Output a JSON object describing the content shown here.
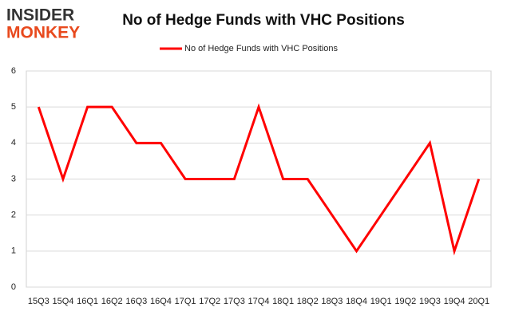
{
  "logo": {
    "line1": "INSIDER",
    "line2": "MONKEY"
  },
  "chart_data": {
    "type": "line",
    "title": "No of Hedge Funds with VHC Positions",
    "categories": [
      "15Q3",
      "15Q4",
      "16Q1",
      "16Q2",
      "16Q3",
      "16Q4",
      "17Q1",
      "17Q2",
      "17Q3",
      "17Q4",
      "18Q1",
      "18Q2",
      "18Q3",
      "18Q4",
      "19Q1",
      "19Q2",
      "19Q3",
      "19Q4",
      "20Q1"
    ],
    "series": [
      {
        "name": "No of Hedge Funds with VHC Positions",
        "color": "#ff0000",
        "values": [
          5,
          3,
          5,
          5,
          4,
          4,
          3,
          3,
          3,
          5,
          3,
          3,
          2,
          1,
          2,
          3,
          4,
          1,
          3
        ]
      }
    ],
    "ylim": [
      0,
      6
    ],
    "yticks": [
      0,
      1,
      2,
      3,
      4,
      5,
      6
    ],
    "grid": true,
    "legend": "top"
  }
}
